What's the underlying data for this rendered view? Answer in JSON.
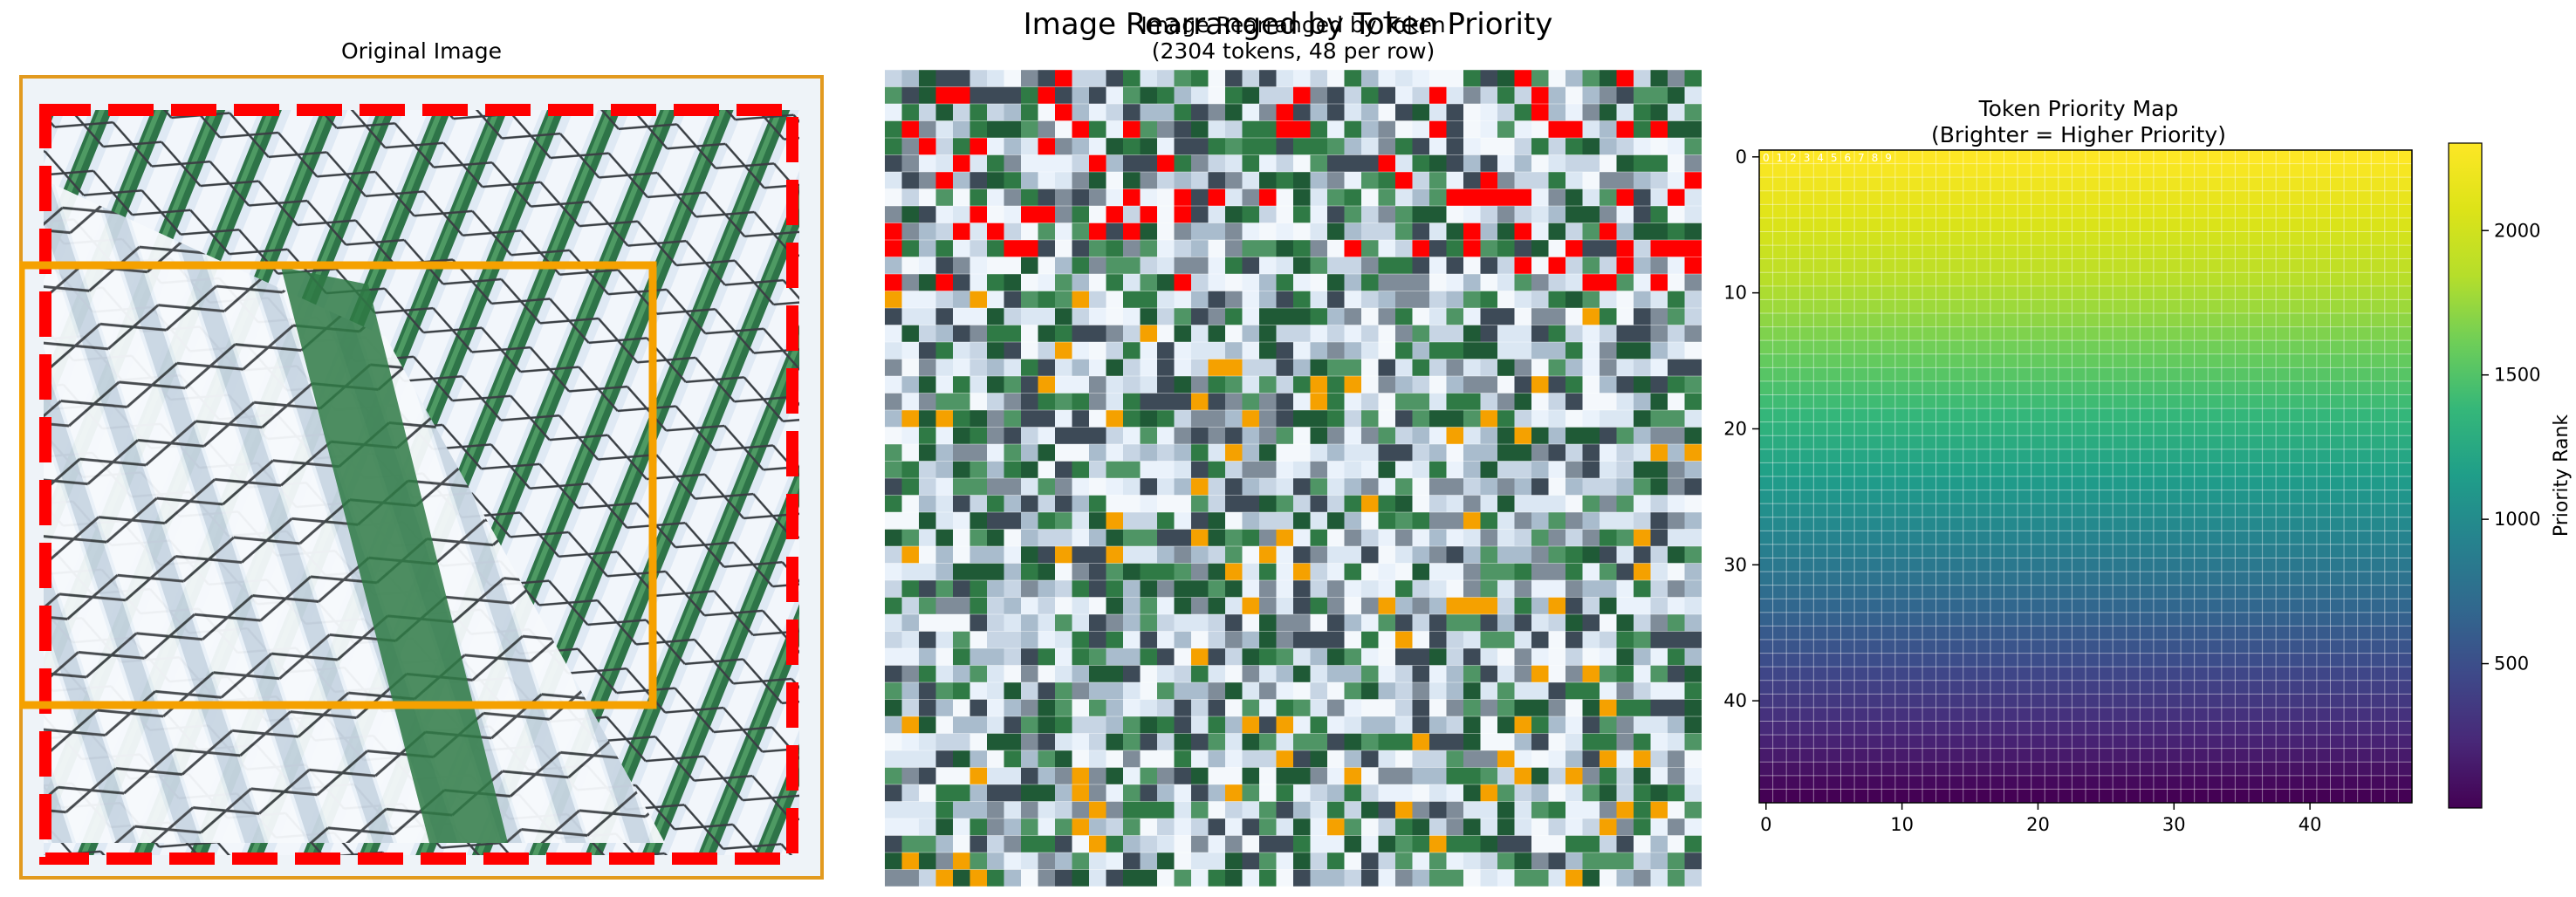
{
  "figure": {
    "suptitle": "Image Rearranged by Token Priority"
  },
  "panel_original": {
    "title": "Original Image"
  },
  "panel_rearranged": {
    "title_line1": "Image Rearranged by Token",
    "title_line2": "(2304 tokens, 48 per row)"
  },
  "panel_priority_map": {
    "title_line1": "Token Priority Map",
    "title_line2": "(Brighter = Higher Priority)",
    "cell_labels": [
      "0",
      "1",
      "2",
      "3",
      "4",
      "5",
      "6",
      "7",
      "8",
      "9"
    ],
    "colorbar_label": "Priority Rank"
  },
  "colors": {
    "box_orange": "#f5a100",
    "box_red": "#ff0000",
    "fence_white": "#e6eef7",
    "fence_green": "#2f7a45"
  },
  "chart_data": [
    {
      "type": "heatmap",
      "title": "Token Priority Map\n(Brighter = Higher Priority)",
      "grid_size": [
        48,
        48
      ],
      "x_ticks": [
        0,
        10,
        20,
        30,
        40
      ],
      "y_ticks": [
        0,
        10,
        20,
        30,
        40
      ],
      "xlim": [
        -0.5,
        47.5
      ],
      "ylim": [
        47.5,
        -0.5
      ],
      "colormap": "viridis",
      "value_range": [
        0,
        2303
      ],
      "row_value_top": 2303,
      "row_value_bottom": 0,
      "colorbar": {
        "label": "Priority Rank",
        "ticks": [
          500,
          1000,
          1500,
          2000
        ]
      }
    }
  ]
}
